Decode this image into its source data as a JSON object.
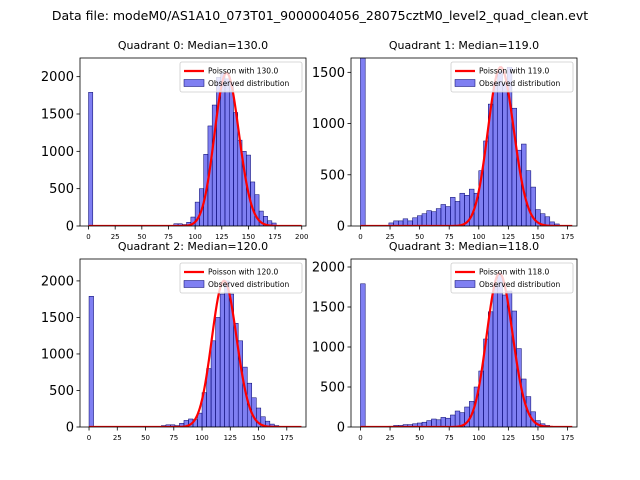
{
  "figure": {
    "suptitle": "Data file: modeM0/AS1A10_073T01_9000004056_28075cztM0_level2_quad_clean.evt"
  },
  "colors": {
    "bar_fill": "rgba(0,0,230,0.5)",
    "bar_edge": "#000066",
    "poisson_line": "#ff0000"
  },
  "chart_data": [
    {
      "type": "bar",
      "title": "Quadrant 0: Median=130.0",
      "median": 130.0,
      "xlim": [
        -8,
        204
      ],
      "ylim": [
        0,
        2250
      ],
      "xticks": [
        0,
        25,
        50,
        75,
        100,
        125,
        150,
        175,
        200
      ],
      "yticks": [
        0,
        500,
        1000,
        1500,
        2000
      ],
      "legend": [
        "Poisson with 130.0",
        "Observed distribution"
      ],
      "bin_width": 4,
      "bars": [
        [
          0,
          1790
        ],
        [
          76,
          10
        ],
        [
          80,
          30
        ],
        [
          84,
          30
        ],
        [
          88,
          20
        ],
        [
          92,
          50
        ],
        [
          96,
          120
        ],
        [
          100,
          320
        ],
        [
          104,
          500
        ],
        [
          108,
          960
        ],
        [
          112,
          1340
        ],
        [
          116,
          1620
        ],
        [
          120,
          1990
        ],
        [
          124,
          2050
        ],
        [
          128,
          1970
        ],
        [
          132,
          1920
        ],
        [
          136,
          1520
        ],
        [
          140,
          1150
        ],
        [
          144,
          1000
        ],
        [
          148,
          950
        ],
        [
          152,
          590
        ],
        [
          156,
          420
        ],
        [
          160,
          200
        ],
        [
          164,
          130
        ],
        [
          168,
          70
        ],
        [
          172,
          40
        ],
        [
          176,
          10
        ]
      ]
    },
    {
      "type": "bar",
      "title": "Quadrant 1: Median=119.0",
      "median": 119.0,
      "xlim": [
        -8,
        183
      ],
      "ylim": [
        0,
        1640
      ],
      "xticks": [
        0,
        25,
        50,
        75,
        100,
        125,
        150,
        175
      ],
      "yticks": [
        0,
        500,
        1000,
        1500
      ],
      "legend": [
        "Poisson with 119.0",
        "Observed distribution"
      ],
      "bin_width": 4,
      "bars": [
        [
          0,
          1640
        ],
        [
          24,
          30
        ],
        [
          28,
          50
        ],
        [
          32,
          50
        ],
        [
          36,
          70
        ],
        [
          40,
          50
        ],
        [
          44,
          80
        ],
        [
          48,
          100
        ],
        [
          52,
          120
        ],
        [
          56,
          150
        ],
        [
          60,
          140
        ],
        [
          64,
          170
        ],
        [
          68,
          210
        ],
        [
          72,
          190
        ],
        [
          76,
          280
        ],
        [
          80,
          240
        ],
        [
          84,
          320
        ],
        [
          88,
          300
        ],
        [
          92,
          360
        ],
        [
          96,
          320
        ],
        [
          100,
          540
        ],
        [
          104,
          830
        ],
        [
          108,
          1190
        ],
        [
          112,
          1400
        ],
        [
          116,
          1510
        ],
        [
          120,
          1390
        ],
        [
          124,
          1550
        ],
        [
          128,
          1150
        ],
        [
          132,
          740
        ],
        [
          136,
          800
        ],
        [
          140,
          540
        ],
        [
          144,
          380
        ],
        [
          148,
          160
        ],
        [
          152,
          120
        ],
        [
          156,
          90
        ],
        [
          160,
          40
        ],
        [
          164,
          20
        ]
      ]
    },
    {
      "type": "bar",
      "title": "Quadrant 2: Median=120.0",
      "median": 120.0,
      "xlim": [
        -8,
        192
      ],
      "ylim": [
        0,
        2300
      ],
      "xticks": [
        0,
        25,
        50,
        75,
        100,
        125,
        150,
        175
      ],
      "yticks": [
        0,
        500,
        1000,
        1500,
        2000
      ],
      "legend": [
        "Poisson with 120.0",
        "Observed distribution"
      ],
      "bin_width": 4,
      "bars": [
        [
          0,
          1790
        ],
        [
          64,
          20
        ],
        [
          68,
          30
        ],
        [
          72,
          30
        ],
        [
          76,
          20
        ],
        [
          80,
          50
        ],
        [
          84,
          90
        ],
        [
          88,
          110
        ],
        [
          92,
          100
        ],
        [
          96,
          190
        ],
        [
          100,
          470
        ],
        [
          104,
          800
        ],
        [
          108,
          1180
        ],
        [
          112,
          1500
        ],
        [
          116,
          1820
        ],
        [
          120,
          2000
        ],
        [
          124,
          1820
        ],
        [
          128,
          1420
        ],
        [
          132,
          1180
        ],
        [
          136,
          820
        ],
        [
          140,
          600
        ],
        [
          144,
          400
        ],
        [
          148,
          260
        ],
        [
          152,
          140
        ],
        [
          156,
          80
        ],
        [
          160,
          40
        ],
        [
          164,
          20
        ]
      ]
    },
    {
      "type": "bar",
      "title": "Quadrant 3: Median=118.0",
      "median": 118.0,
      "xlim": [
        -8,
        183
      ],
      "ylim": [
        0,
        2100
      ],
      "xticks": [
        0,
        25,
        50,
        75,
        100,
        125,
        150,
        175
      ],
      "yticks": [
        0,
        500,
        1000,
        1500,
        2000
      ],
      "legend": [
        "Poisson with 118.0",
        "Observed distribution"
      ],
      "bin_width": 4,
      "bars": [
        [
          0,
          1790
        ],
        [
          24,
          10
        ],
        [
          28,
          20
        ],
        [
          32,
          20
        ],
        [
          36,
          30
        ],
        [
          40,
          30
        ],
        [
          44,
          40
        ],
        [
          48,
          50
        ],
        [
          52,
          60
        ],
        [
          56,
          80
        ],
        [
          60,
          100
        ],
        [
          64,
          90
        ],
        [
          68,
          120
        ],
        [
          72,
          110
        ],
        [
          76,
          150
        ],
        [
          80,
          200
        ],
        [
          84,
          180
        ],
        [
          88,
          250
        ],
        [
          92,
          320
        ],
        [
          96,
          500
        ],
        [
          100,
          700
        ],
        [
          104,
          1100
        ],
        [
          108,
          1440
        ],
        [
          112,
          1770
        ],
        [
          116,
          1920
        ],
        [
          120,
          1650
        ],
        [
          124,
          1700
        ],
        [
          128,
          1450
        ],
        [
          132,
          980
        ],
        [
          136,
          600
        ],
        [
          140,
          380
        ],
        [
          144,
          190
        ],
        [
          148,
          80
        ],
        [
          152,
          40
        ],
        [
          156,
          20
        ]
      ]
    }
  ]
}
